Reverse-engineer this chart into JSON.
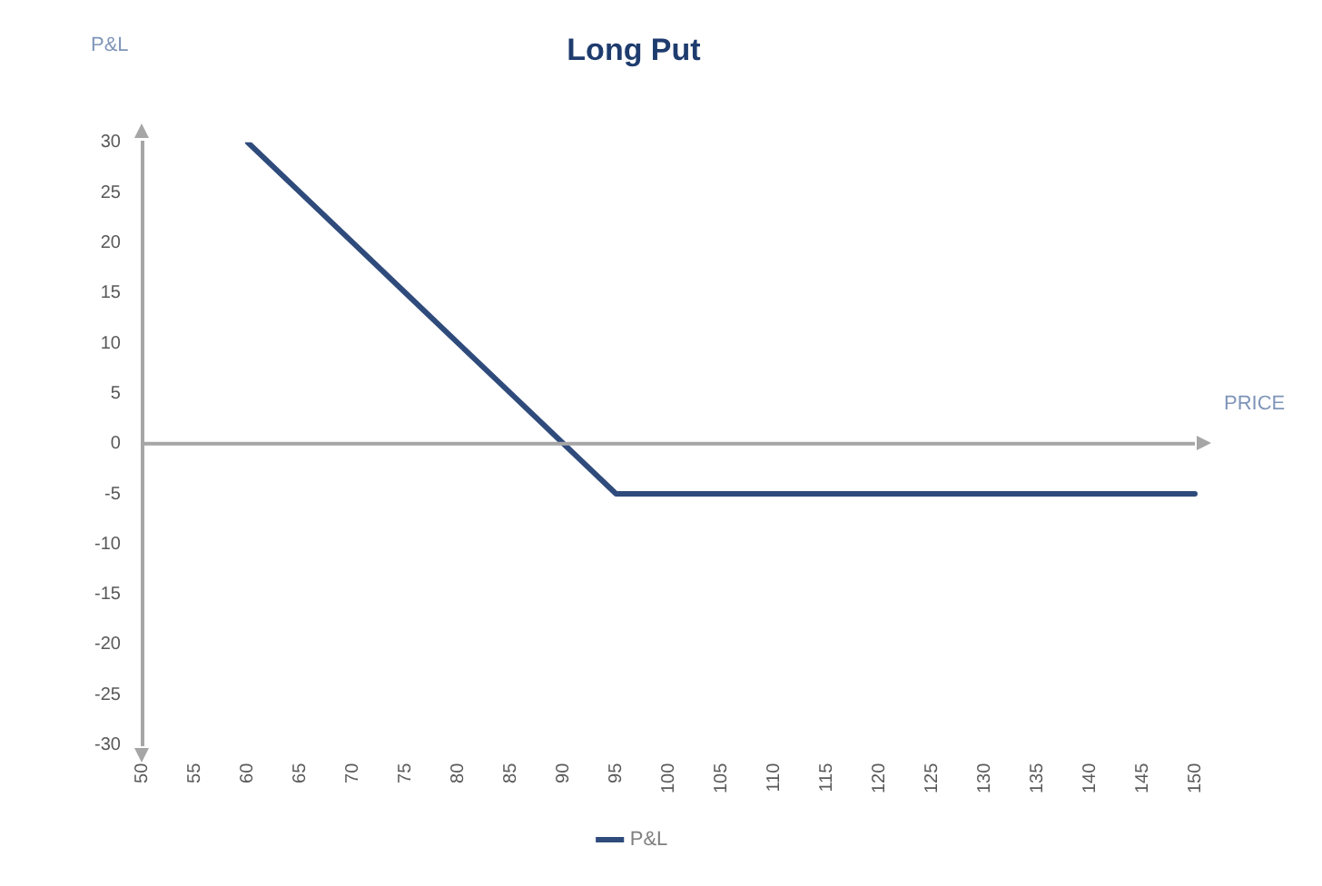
{
  "chart_data": {
    "type": "line",
    "title": "Long Put",
    "xlabel": "PRICE",
    "ylabel": "P&L",
    "categories": [
      "50",
      "55",
      "60",
      "65",
      "70",
      "75",
      "80",
      "85",
      "90",
      "95",
      "100",
      "105",
      "110",
      "115",
      "120",
      "125",
      "130",
      "135",
      "140",
      "145",
      "150"
    ],
    "series": [
      {
        "name": "P&L",
        "color": "#2f4b7c",
        "values": [
          null,
          null,
          30,
          25,
          20,
          15,
          10,
          5,
          0,
          -5,
          -5,
          -5,
          -5,
          -5,
          -5,
          -5,
          -5,
          -5,
          -5,
          -5,
          -5
        ]
      }
    ],
    "ylim": [
      -30,
      30
    ],
    "yticks": [
      -30,
      -25,
      -20,
      -15,
      -10,
      -5,
      0,
      5,
      10,
      15,
      20,
      25,
      30
    ],
    "ref_lines": [
      {
        "axis": "y",
        "value": 0,
        "color": "#a6a6a6"
      }
    ],
    "grid": false,
    "legend": "bottom",
    "marker": "none",
    "line_style": "solid"
  }
}
